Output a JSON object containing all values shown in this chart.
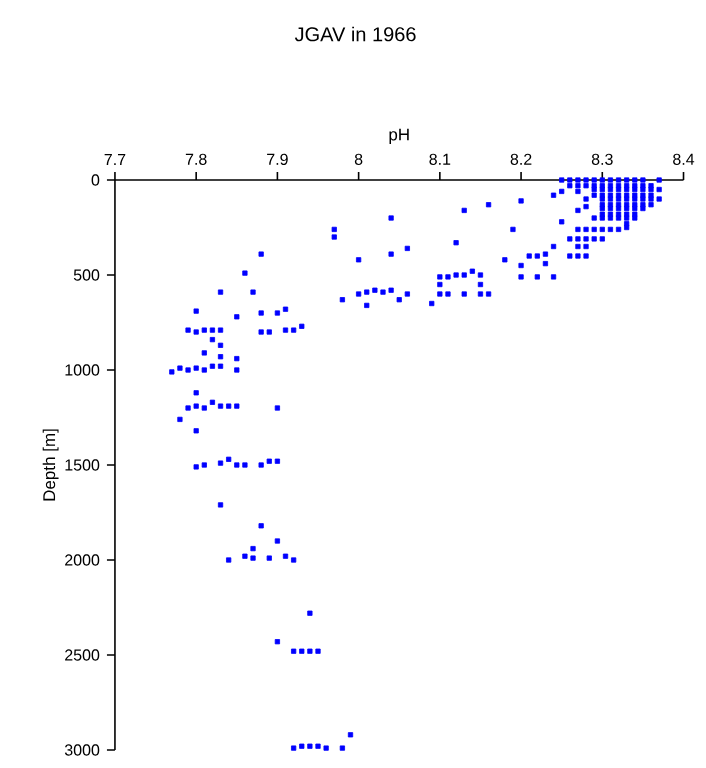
{
  "chart_data": {
    "type": "scatter",
    "title": "JGAV in 1966",
    "xlabel": "pH",
    "ylabel": "Depth [m]",
    "xlim": [
      7.7,
      8.4
    ],
    "xticks": [
      7.7,
      7.8,
      7.9,
      8,
      8.1,
      8.2,
      8.3,
      8.4
    ],
    "ylim": [
      3000,
      0
    ],
    "yticks": [
      0,
      500,
      1000,
      1500,
      2000,
      2500,
      3000
    ],
    "marker": "square",
    "grid": false,
    "series": [
      {
        "color": "#0000ff",
        "x": [
          7.8,
          7.85,
          7.88,
          7.9,
          7.91,
          7.79,
          7.8,
          7.81,
          7.82,
          7.83,
          7.88,
          7.89,
          7.91,
          7.92,
          7.93,
          7.82,
          7.83,
          7.81,
          7.83,
          7.85,
          7.77,
          7.78,
          7.79,
          7.8,
          7.81,
          7.82,
          7.83,
          7.85,
          7.8,
          7.79,
          7.8,
          7.81,
          7.82,
          7.83,
          7.84,
          7.85,
          7.9,
          7.78,
          7.8,
          7.8,
          7.81,
          7.83,
          7.84,
          7.85,
          7.86,
          7.88,
          7.89,
          7.9,
          7.83,
          7.88,
          7.9,
          7.87,
          7.84,
          7.86,
          7.87,
          7.89,
          7.91,
          7.92,
          7.94,
          7.9,
          7.92,
          7.93,
          7.94,
          7.95,
          7.92,
          7.93,
          7.94,
          7.95,
          7.96,
          7.98,
          7.99,
          7.97,
          7.97,
          8.04,
          7.88,
          8.0,
          8.04,
          8.06,
          8.12,
          8.13,
          8.16,
          8.19,
          8.2,
          7.86,
          7.83,
          7.87,
          7.98,
          8.0,
          8.01,
          8.02,
          8.03,
          8.04,
          8.05,
          8.06,
          8.01,
          8.09,
          8.1,
          8.11,
          8.12,
          8.13,
          8.14,
          8.15,
          8.1,
          8.15,
          8.1,
          8.11,
          8.13,
          8.15,
          8.16,
          8.18,
          8.2,
          8.21,
          8.22,
          8.23,
          8.24,
          8.2,
          8.22,
          8.24,
          8.23,
          8.24,
          8.25,
          8.28,
          8.27,
          8.25,
          8.29,
          8.3,
          8.31,
          8.32,
          8.34,
          8.27,
          8.28,
          8.29,
          8.3,
          8.31,
          8.32,
          8.26,
          8.27,
          8.28,
          8.29,
          8.3,
          8.27,
          8.28,
          8.26,
          8.27,
          8.28,
          8.25,
          8.26,
          8.27,
          8.28,
          8.29,
          8.3,
          8.31,
          8.32,
          8.33,
          8.34,
          8.35,
          8.37,
          8.29,
          8.29,
          8.29,
          8.3,
          8.3,
          8.3,
          8.3,
          8.3,
          8.3,
          8.3,
          8.31,
          8.31,
          8.31,
          8.31,
          8.31,
          8.31,
          8.31,
          8.32,
          8.32,
          8.32,
          8.32,
          8.32,
          8.32,
          8.32,
          8.33,
          8.33,
          8.33,
          8.33,
          8.33,
          8.33,
          8.33,
          8.33,
          8.33,
          8.33,
          8.34,
          8.34,
          8.34,
          8.34,
          8.34,
          8.34,
          8.34,
          8.35,
          8.35,
          8.35,
          8.35,
          8.35,
          8.35,
          8.36,
          8.36,
          8.36,
          8.36,
          8.36,
          8.37,
          8.37,
          8.26,
          8.27,
          8.27,
          8.28,
          8.28
        ],
        "values": [
          690,
          720,
          700,
          700,
          680,
          790,
          800,
          790,
          790,
          790,
          800,
          800,
          790,
          790,
          770,
          840,
          870,
          910,
          930,
          940,
          1010,
          990,
          1000,
          990,
          1000,
          980,
          980,
          1000,
          1120,
          1200,
          1190,
          1200,
          1170,
          1190,
          1190,
          1190,
          1200,
          1260,
          1320,
          1510,
          1500,
          1490,
          1470,
          1500,
          1500,
          1500,
          1480,
          1480,
          1710,
          1820,
          1900,
          1940,
          2000,
          1980,
          1990,
          1990,
          1980,
          2000,
          2280,
          2430,
          2480,
          2480,
          2480,
          2480,
          2990,
          2980,
          2980,
          2980,
          2990,
          2990,
          2920,
          260,
          300,
          200,
          390,
          420,
          390,
          360,
          330,
          160,
          130,
          260,
          110,
          490,
          590,
          590,
          630,
          600,
          590,
          580,
          590,
          580,
          630,
          600,
          660,
          650,
          510,
          510,
          500,
          500,
          480,
          500,
          550,
          550,
          600,
          600,
          600,
          600,
          600,
          420,
          450,
          400,
          400,
          390,
          350,
          510,
          510,
          510,
          440,
          80,
          60,
          140,
          160,
          220,
          200,
          200,
          200,
          200,
          200,
          260,
          260,
          260,
          260,
          260,
          260,
          310,
          310,
          310,
          310,
          310,
          350,
          350,
          400,
          400,
          400,
          0,
          0,
          0,
          0,
          0,
          0,
          0,
          0,
          0,
          0,
          0,
          0,
          30,
          50,
          80,
          30,
          50,
          80,
          100,
          130,
          150,
          180,
          30,
          50,
          80,
          100,
          130,
          150,
          180,
          30,
          50,
          80,
          100,
          130,
          150,
          180,
          30,
          50,
          80,
          100,
          130,
          150,
          180,
          200,
          230,
          250,
          30,
          50,
          80,
          100,
          130,
          150,
          180,
          30,
          50,
          80,
          100,
          130,
          150,
          30,
          50,
          80,
          100,
          130,
          50,
          100,
          30,
          30,
          60,
          30,
          100
        ]
      }
    ]
  }
}
